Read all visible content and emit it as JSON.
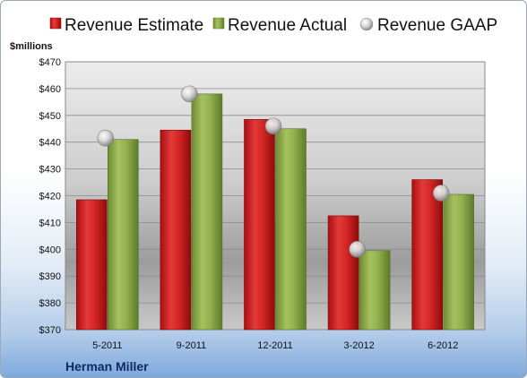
{
  "chart_data": {
    "type": "bar",
    "ylabel": "$millions",
    "company": "Herman Miller",
    "categories": [
      "5-2011",
      "9-2011",
      "12-2011",
      "3-2012",
      "6-2012"
    ],
    "series": [
      {
        "name": "Revenue Estimate",
        "kind": "bar",
        "color": "#d62a2a",
        "values": [
          418.5,
          444.5,
          448.5,
          412.5,
          426
        ]
      },
      {
        "name": "Revenue Actual",
        "kind": "bar",
        "color": "#8fae4a",
        "values": [
          441,
          458,
          445,
          399.5,
          420.5
        ]
      },
      {
        "name": "Revenue GAAP",
        "kind": "marker",
        "color": "#c8c8c8",
        "values": [
          441.5,
          458,
          446,
          400,
          421
        ]
      }
    ],
    "ylim": [
      370,
      470
    ],
    "yticks": [
      "$470",
      "$460",
      "$450",
      "$440",
      "$430",
      "$420",
      "$410",
      "$400",
      "$390",
      "$380",
      "$370"
    ],
    "grid": true,
    "legend_position": "top"
  }
}
